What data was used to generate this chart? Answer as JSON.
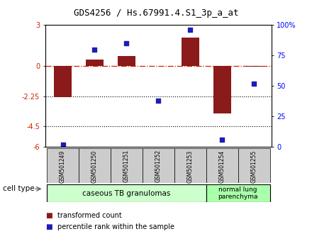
{
  "title": "GDS4256 / Hs.67991.4.S1_3p_a_at",
  "samples": [
    "GSM501249",
    "GSM501250",
    "GSM501251",
    "GSM501252",
    "GSM501253",
    "GSM501254",
    "GSM501255"
  ],
  "transformed_count": [
    -2.3,
    0.45,
    0.7,
    0.0,
    2.1,
    -3.55,
    -0.05
  ],
  "percentile_rank": [
    2,
    80,
    85,
    38,
    96,
    6,
    52
  ],
  "left_ylim": [
    -6,
    3
  ],
  "left_yticks": [
    -6,
    -4.5,
    -2.25,
    0,
    3
  ],
  "left_yticklabels": [
    "-6",
    "-4.5",
    "-2.25",
    "0",
    "3"
  ],
  "right_ylim": [
    0,
    100
  ],
  "right_yticks": [
    0,
    25,
    50,
    75,
    100
  ],
  "right_yticklabels": [
    "0",
    "25",
    "50",
    "75",
    "100%"
  ],
  "bar_color": "#8B1A1A",
  "scatter_color": "#1C1CB8",
  "hline_y": 0,
  "hline_color": "#CC2200",
  "dotted_lines": [
    -2.25,
    -4.5
  ],
  "group1_label": "caseous TB granulomas",
  "group2_label": "normal lung\nparenchyma",
  "group1_color": "#CCFFCC",
  "group2_color": "#AAFFAA",
  "cell_type_label": "cell type",
  "legend_bar_label": "transformed count",
  "legend_scatter_label": "percentile rank within the sample"
}
